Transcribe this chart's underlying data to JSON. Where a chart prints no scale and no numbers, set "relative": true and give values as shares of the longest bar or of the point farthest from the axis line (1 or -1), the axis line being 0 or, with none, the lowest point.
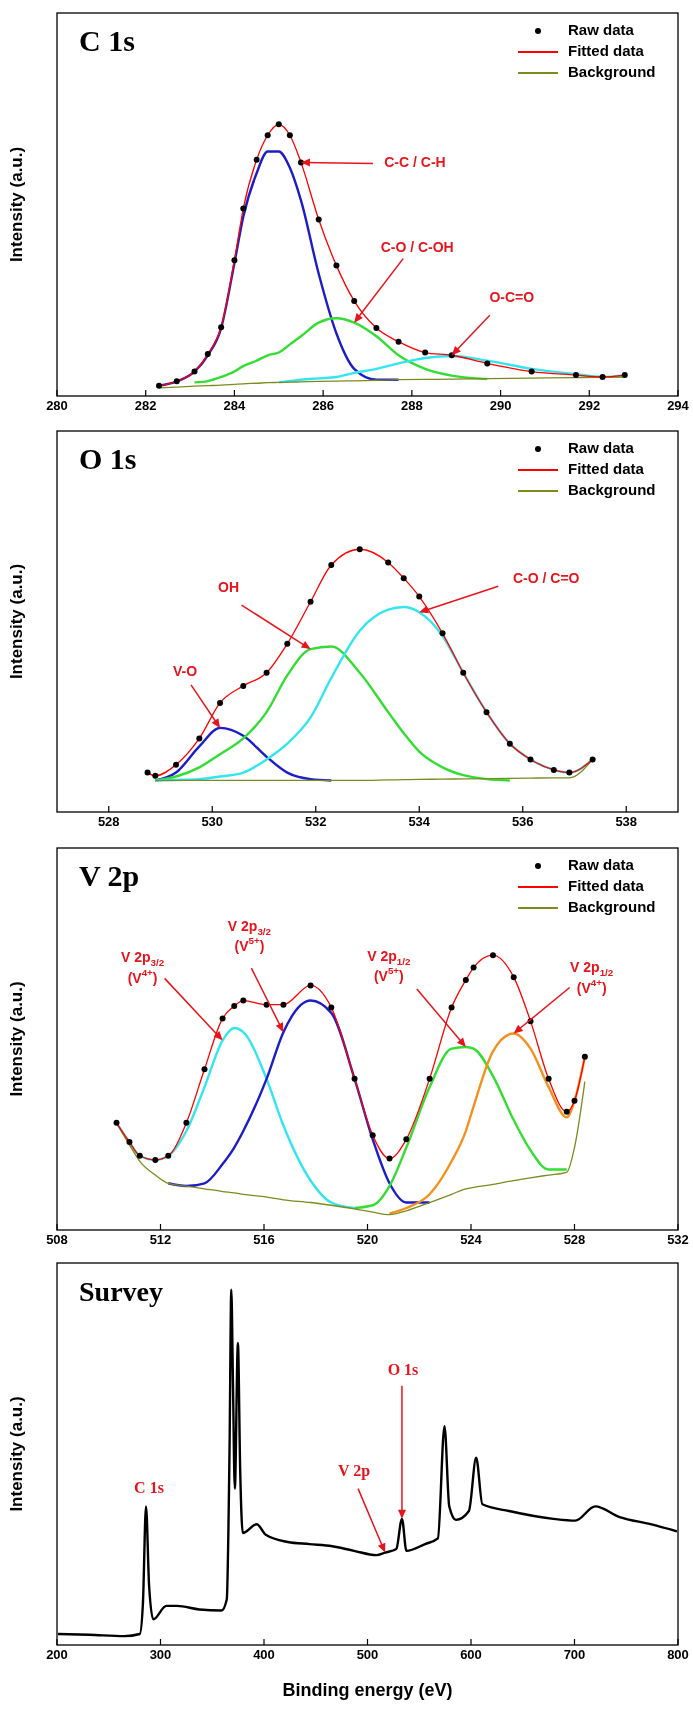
{
  "chart_data": [
    {
      "type": "line",
      "title": "C 1s",
      "ylabel": "Intensity (a.u.)",
      "relative": true,
      "tick_labels": "x",
      "legend": "top right",
      "xlim": [
        280,
        294
      ],
      "xticks": [
        280,
        282,
        284,
        286,
        288,
        290,
        292,
        294
      ],
      "x": [
        282.3,
        282.7,
        283.1,
        283.4,
        283.7,
        284.0,
        284.2,
        284.5,
        284.75,
        285.0,
        285.25,
        285.5,
        285.9,
        286.3,
        286.7,
        287.2,
        287.7,
        288.3,
        288.9,
        289.7,
        290.7,
        291.7,
        292.3,
        292.8
      ],
      "series": [
        {
          "color": "#1c1cc8",
          "values": [
            0.038,
            0.054,
            0.09,
            0.15,
            0.25,
            0.49,
            0.66,
            0.82,
            0.9,
            0.9,
            0.84,
            0.72,
            0.45,
            0.23,
            0.1,
            0.06,
            0.06,
            null,
            null,
            null,
            null,
            null,
            null,
            null
          ]
        },
        {
          "color": "#33dd33",
          "values": [
            null,
            null,
            0.05,
            0.055,
            0.07,
            0.09,
            0.11,
            0.13,
            0.15,
            0.16,
            0.19,
            0.22,
            0.27,
            0.286,
            0.27,
            0.22,
            0.15,
            0.1,
            0.075,
            0.062,
            null,
            null,
            null,
            null
          ]
        },
        {
          "color": "#33e5ee",
          "values": [
            null,
            null,
            null,
            null,
            null,
            null,
            null,
            null,
            null,
            0.05,
            0.055,
            0.06,
            0.065,
            0.07,
            0.085,
            0.1,
            0.12,
            0.14,
            0.147,
            0.13,
            0.1,
            0.08,
            0.07,
            0.077
          ]
        },
        {
          "name": "Background",
          "color": "#7d8a1e",
          "values": [
            0.03,
            0.033,
            0.036,
            0.038,
            0.04,
            0.043,
            0.045,
            0.047,
            0.049,
            0.05,
            0.051,
            0.052,
            0.054,
            0.055,
            0.056,
            0.058,
            0.06,
            0.061,
            0.062,
            0.064,
            0.066,
            0.068,
            0.069,
            0.07
          ]
        },
        {
          "name": "Fitted data",
          "color": "#ff0000",
          "values": [
            0.038,
            0.054,
            0.09,
            0.155,
            0.253,
            0.5,
            0.69,
            0.87,
            0.96,
            1,
            0.96,
            0.86,
            0.65,
            0.48,
            0.35,
            0.25,
            0.2,
            0.16,
            0.15,
            0.12,
            0.09,
            0.077,
            0.07,
            0.077
          ]
        },
        {
          "name": "Raw data",
          "type": "scatter",
          "marker": "circle",
          "color": "#000000",
          "values": [
            0.038,
            0.054,
            0.09,
            0.155,
            0.253,
            0.5,
            0.69,
            0.87,
            0.96,
            1,
            0.96,
            0.86,
            0.65,
            0.48,
            0.35,
            0.25,
            0.2,
            0.16,
            0.15,
            0.12,
            0.09,
            0.077,
            0.07,
            0.077
          ]
        }
      ],
      "annotations": [
        {
          "text": "C-C / C-H",
          "x": 285.5,
          "y": 0.86
        },
        {
          "text": "C-O / C-OH",
          "x": 286.7,
          "y": 0.27
        },
        {
          "text": "O-C=O",
          "x": 288.9,
          "y": 0.15
        }
      ]
    },
    {
      "type": "line",
      "title": "O 1s",
      "ylabel": "Intensity (a.u.)",
      "relative": true,
      "tick_labels": "x",
      "legend": "top right",
      "xlim": [
        527,
        539
      ],
      "xticks": [
        528,
        530,
        532,
        534,
        536,
        538
      ],
      "x": [
        528.75,
        528.9,
        529.3,
        529.75,
        530.15,
        530.6,
        531.05,
        531.45,
        531.9,
        532.3,
        532.85,
        533.4,
        533.7,
        534.0,
        534.45,
        534.85,
        535.3,
        535.75,
        536.15,
        536.6,
        536.9,
        537.35
      ],
      "series": [
        {
          "color": "#1c1cc8",
          "values": [
            null,
            0.12,
            0.15,
            0.25,
            0.32,
            0.29,
            0.21,
            0.15,
            0.125,
            0.12,
            null,
            null,
            null,
            null,
            null,
            null,
            null,
            null,
            null,
            null,
            null,
            null
          ]
        },
        {
          "color": "#33dd33",
          "values": [
            null,
            0.12,
            0.135,
            0.17,
            0.22,
            0.28,
            0.38,
            0.52,
            0.62,
            0.63,
            0.53,
            0.38,
            0.3,
            0.23,
            0.17,
            0.14,
            0.125,
            0.12,
            null,
            null,
            null,
            null
          ]
        },
        {
          "color": "#33e5ee",
          "values": [
            null,
            0.12,
            0.122,
            0.125,
            0.135,
            0.15,
            0.2,
            0.26,
            0.36,
            0.51,
            0.69,
            0.77,
            0.78,
            0.76,
            0.67,
            0.53,
            0.38,
            0.26,
            0.2,
            0.16,
            0.15,
            0.2
          ]
        },
        {
          "name": "Background",
          "color": "#7d8a1e",
          "values": [
            null,
            0.12,
            0.12,
            0.12,
            0.12,
            0.12,
            0.12,
            0.12,
            0.12,
            0.12,
            0.12,
            0.122,
            0.123,
            0.124,
            0.125,
            0.126,
            0.127,
            0.128,
            0.129,
            0.13,
            0.13,
            0.2
          ]
        },
        {
          "name": "Fitted data",
          "color": "#ff0000",
          "values": [
            0.15,
            0.138,
            0.18,
            0.28,
            0.415,
            0.48,
            0.53,
            0.64,
            0.8,
            0.94,
            1,
            0.95,
            0.89,
            0.82,
            0.68,
            0.53,
            0.38,
            0.26,
            0.2,
            0.16,
            0.15,
            0.2
          ]
        },
        {
          "name": "Raw data",
          "type": "scatter",
          "marker": "circle",
          "color": "#000000",
          "values": [
            0.15,
            0.138,
            0.18,
            0.28,
            0.415,
            0.48,
            0.53,
            0.64,
            0.8,
            0.94,
            1,
            0.95,
            0.89,
            0.82,
            0.68,
            0.53,
            0.38,
            0.26,
            0.2,
            0.16,
            0.15,
            0.2
          ]
        }
      ],
      "annotations": [
        {
          "text": "V-O",
          "x": 530.15,
          "y": 0.32
        },
        {
          "text": "OH",
          "x": 531.9,
          "y": 0.62
        },
        {
          "text": "C-O / C=O",
          "x": 534.0,
          "y": 0.76
        }
      ]
    },
    {
      "type": "line",
      "title": "V 2p",
      "ylabel": "Intensity (a.u.)",
      "relative": true,
      "tick_labels": "x",
      "legend": "top right",
      "xlim": [
        508,
        532
      ],
      "xticks": [
        508,
        512,
        516,
        520,
        524,
        528,
        532
      ],
      "x": [
        510.3,
        510.8,
        511.2,
        511.8,
        512.3,
        513.0,
        513.7,
        514.4,
        514.85,
        515.2,
        516.1,
        516.75,
        517.8,
        518.6,
        519.5,
        520.2,
        520.85,
        521.5,
        522.4,
        523.25,
        523.8,
        524.1,
        524.85,
        525.65,
        526.3,
        527.0,
        527.7,
        528.0,
        528.4
      ],
      "series": [
        {
          "color": "#33e5ee",
          "values": [
            0.39,
            0.32,
            0.27,
            0.255,
            0.27,
            0.36,
            0.52,
            0.69,
            0.735,
            0.72,
            0.55,
            0.38,
            0.18,
            0.1,
            0.08,
            null,
            null,
            null,
            null,
            null,
            null,
            null,
            null,
            null,
            null,
            null,
            null,
            null,
            null
          ]
        },
        {
          "color": "#1c1cc8",
          "values": [
            null,
            null,
            null,
            null,
            0.17,
            0.16,
            0.17,
            0.24,
            0.3,
            0.36,
            0.55,
            0.72,
            0.835,
            0.79,
            0.55,
            0.33,
            0.17,
            0.1,
            0.1,
            null,
            null,
            null,
            null,
            null,
            null,
            null,
            null,
            null,
            null
          ]
        },
        {
          "color": "#33dd33",
          "values": [
            null,
            null,
            null,
            null,
            null,
            null,
            null,
            null,
            null,
            null,
            null,
            null,
            null,
            null,
            0.08,
            0.09,
            0.16,
            0.3,
            0.52,
            0.66,
            0.666,
            0.66,
            0.56,
            0.4,
            0.29,
            0.22,
            0.22,
            null,
            null
          ]
        },
        {
          "color": "#f5901e",
          "values": [
            null,
            null,
            null,
            null,
            null,
            null,
            null,
            null,
            null,
            null,
            null,
            null,
            null,
            null,
            null,
            null,
            0.06,
            0.08,
            0.13,
            0.25,
            0.36,
            0.45,
            0.65,
            0.715,
            0.66,
            0.52,
            0.41,
            0.47,
            0.63
          ]
        },
        {
          "name": "Background",
          "color": "#7d8a1e",
          "values": [
            0.39,
            0.31,
            0.25,
            0.2,
            0.17,
            0.16,
            0.15,
            0.14,
            0.135,
            0.13,
            0.12,
            0.11,
            0.1,
            0.09,
            0.077,
            0.065,
            0.056,
            0.07,
            0.1,
            0.13,
            0.15,
            0.155,
            0.166,
            0.18,
            0.19,
            0.2,
            0.21,
            0.3,
            0.54
          ]
        },
        {
          "name": "Fitted data",
          "color": "#ff0000",
          "values": [
            0.39,
            0.32,
            0.27,
            0.255,
            0.27,
            0.39,
            0.585,
            0.77,
            0.815,
            0.835,
            0.82,
            0.82,
            0.89,
            0.81,
            0.55,
            0.345,
            0.26,
            0.33,
            0.55,
            0.81,
            0.91,
            0.955,
            1,
            0.92,
            0.76,
            0.55,
            0.43,
            0.47,
            0.63
          ]
        },
        {
          "name": "Raw data",
          "type": "scatter",
          "marker": "circle",
          "color": "#000000",
          "values": [
            0.39,
            0.32,
            0.27,
            0.255,
            0.27,
            0.39,
            0.585,
            0.77,
            0.815,
            0.835,
            0.82,
            0.82,
            0.89,
            0.81,
            0.55,
            0.345,
            0.26,
            0.33,
            0.55,
            0.81,
            0.91,
            0.955,
            1,
            0.92,
            0.76,
            0.55,
            0.43,
            0.47,
            0.63
          ]
        }
      ],
      "annotations": [
        {
          "text": "V 2p$_{3/2}$\n(V$^{4+}$)",
          "x": 514.4,
          "y": 0.69
        },
        {
          "text": "V 2p$_{3/2}$\n(V$^{5+}$)",
          "x": 516.75,
          "y": 0.72
        },
        {
          "text": "V 2p$_{1/2}$\n(V$^{5+}$)",
          "x": 523.8,
          "y": 0.666
        },
        {
          "text": "V 2p$_{1/2}$\n(V$^{4+}$)",
          "x": 525.65,
          "y": 0.715
        }
      ]
    },
    {
      "type": "line",
      "title": "Survey",
      "ylabel": "Intensity (a.u.)",
      "xlabel": "Binding energy (eV)",
      "relative": true,
      "tick_labels": "x",
      "xlim": [
        200,
        800
      ],
      "xticks": [
        200,
        300,
        400,
        500,
        600,
        700,
        800
      ],
      "x": [
        201,
        231,
        265,
        280,
        283,
        286,
        289,
        293,
        305.6,
        316,
        337.6,
        359,
        364,
        366.7,
        368.4,
        370,
        371.8,
        374.8,
        377,
        379.5,
        393,
        401.7,
        423,
        444,
        466,
        487,
        508.5,
        517,
        527.8,
        533.3,
        537.6,
        555.6,
        568,
        574.4,
        579,
        585.5,
        598,
        605,
        611,
        636.8,
        679.5,
        700.8,
        720,
        743.6,
        773.5,
        799
      ],
      "series": [
        {
          "color": "#000000",
          "values": [
            0.031,
            0.029,
            0.025,
            0.031,
            0.116,
            0.39,
            0.166,
            0.072,
            0.11,
            0.11,
            0.1,
            0.097,
            0.128,
            0.55,
            1,
            0.74,
            0.44,
            0.85,
            0.49,
            0.315,
            0.34,
            0.31,
            0.29,
            0.284,
            0.278,
            0.265,
            0.253,
            0.26,
            0.27,
            0.355,
            0.265,
            0.284,
            0.3,
            0.616,
            0.39,
            0.352,
            0.377,
            0.527,
            0.396,
            0.377,
            0.355,
            0.35,
            0.39,
            0.36,
            0.34,
            0.32
          ]
        }
      ],
      "annotations": [
        {
          "text": "C 1s",
          "x": 286,
          "y": 0.39
        },
        {
          "text": "V 2p",
          "x": 517,
          "y": 0.26
        },
        {
          "text": "O 1s",
          "x": 533.3,
          "y": 0.355
        }
      ]
    }
  ]
}
